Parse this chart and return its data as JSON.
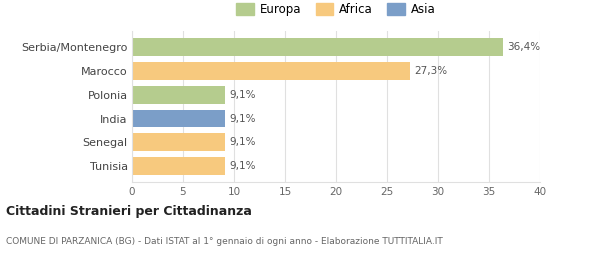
{
  "categories": [
    "Serbia/Montenegro",
    "Marocco",
    "Polonia",
    "India",
    "Senegal",
    "Tunisia"
  ],
  "values": [
    36.4,
    27.3,
    9.1,
    9.1,
    9.1,
    9.1
  ],
  "labels": [
    "36,4%",
    "27,3%",
    "9,1%",
    "9,1%",
    "9,1%",
    "9,1%"
  ],
  "bar_colors": [
    "#b5cc8e",
    "#f7c97e",
    "#b5cc8e",
    "#7b9ec8",
    "#f7c97e",
    "#f7c97e"
  ],
  "legend_items": [
    "Europa",
    "Africa",
    "Asia"
  ],
  "legend_colors": [
    "#b5cc8e",
    "#f7c97e",
    "#7b9ec8"
  ],
  "xlim": [
    0,
    40
  ],
  "xticks": [
    0,
    5,
    10,
    15,
    20,
    25,
    30,
    35,
    40
  ],
  "title": "Cittadini Stranieri per Cittadinanza",
  "subtitle": "COMUNE DI PARZANICA (BG) - Dati ISTAT al 1° gennaio di ogni anno - Elaborazione TUTTITALIA.IT",
  "background_color": "#ffffff",
  "grid_color": "#e0e0e0",
  "label_fontsize": 7.5,
  "ytick_fontsize": 8.0,
  "xtick_fontsize": 7.5
}
